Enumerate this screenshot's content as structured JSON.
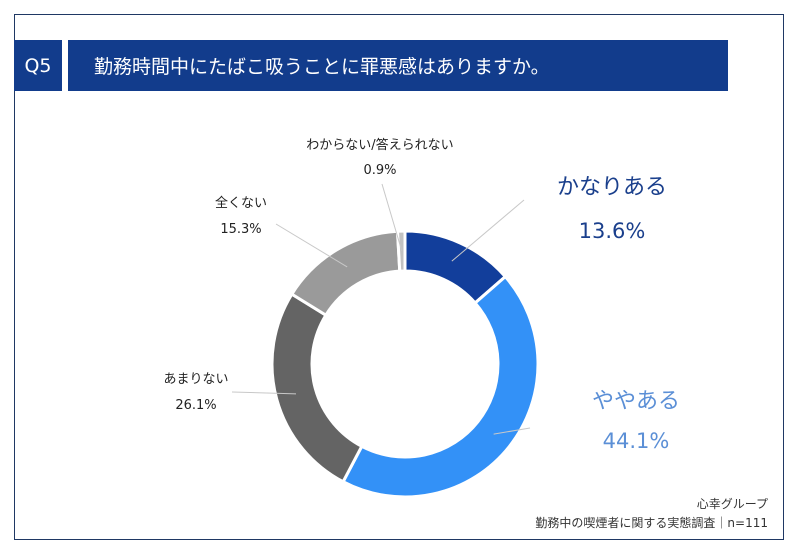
{
  "header": {
    "question_badge": "Q5",
    "question_text": "勤務時間中にたばこ吸うことに罪悪感はありますか。"
  },
  "chart_data": {
    "type": "pie",
    "donut": true,
    "categories": [
      "かなりある",
      "ややある",
      "あまりない",
      "全くない",
      "わからない/答えられない"
    ],
    "values": [
      13.6,
      44.1,
      26.1,
      15.3,
      0.9
    ],
    "percent_labels": [
      "13.6%",
      "44.1%",
      "26.1%",
      "15.3%",
      "0.9%"
    ],
    "colors": [
      "#123e9b",
      "#3391f7",
      "#646464",
      "#9a9a9a",
      "#c2c2c2"
    ],
    "label_colors": [
      "#1a3f8c",
      "#5b8fd6",
      "#222222",
      "#222222",
      "#222222"
    ]
  },
  "footer": {
    "source_org": "心幸グループ",
    "source_survey": "勤務中の喫煙者に関する実態調査｜n=111"
  }
}
